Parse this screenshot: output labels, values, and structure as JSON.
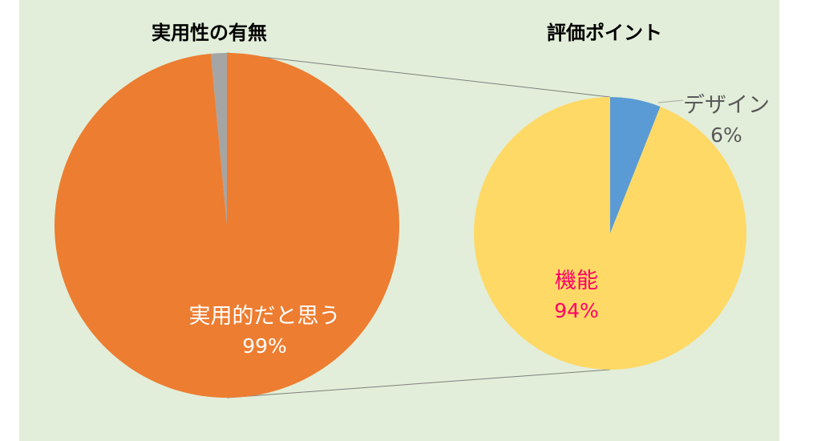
{
  "chart_data": [
    {
      "type": "pie",
      "title": "実用性の有無",
      "slices": [
        {
          "label": "実用的だと思う",
          "value": 99,
          "value_label": "99%",
          "color": "#ed7d31",
          "label_color": "#ffffff"
        },
        {
          "label": "",
          "value": 1.5,
          "value_label": "",
          "color": "#a5a5a5",
          "label_color": "#ffffff"
        }
      ]
    },
    {
      "type": "pie",
      "title": "評価ポイント",
      "slices": [
        {
          "label": "デザイン",
          "value": 6,
          "value_label": "6%",
          "color": "#5b9bd5",
          "label_color": "#595959"
        },
        {
          "label": "機能",
          "value": 94,
          "value_label": "94%",
          "color": "#ffd966",
          "label_color": "#ff0066"
        }
      ]
    }
  ],
  "colors": {
    "background": "#e2eed9",
    "connector": "#7f7f7f"
  }
}
